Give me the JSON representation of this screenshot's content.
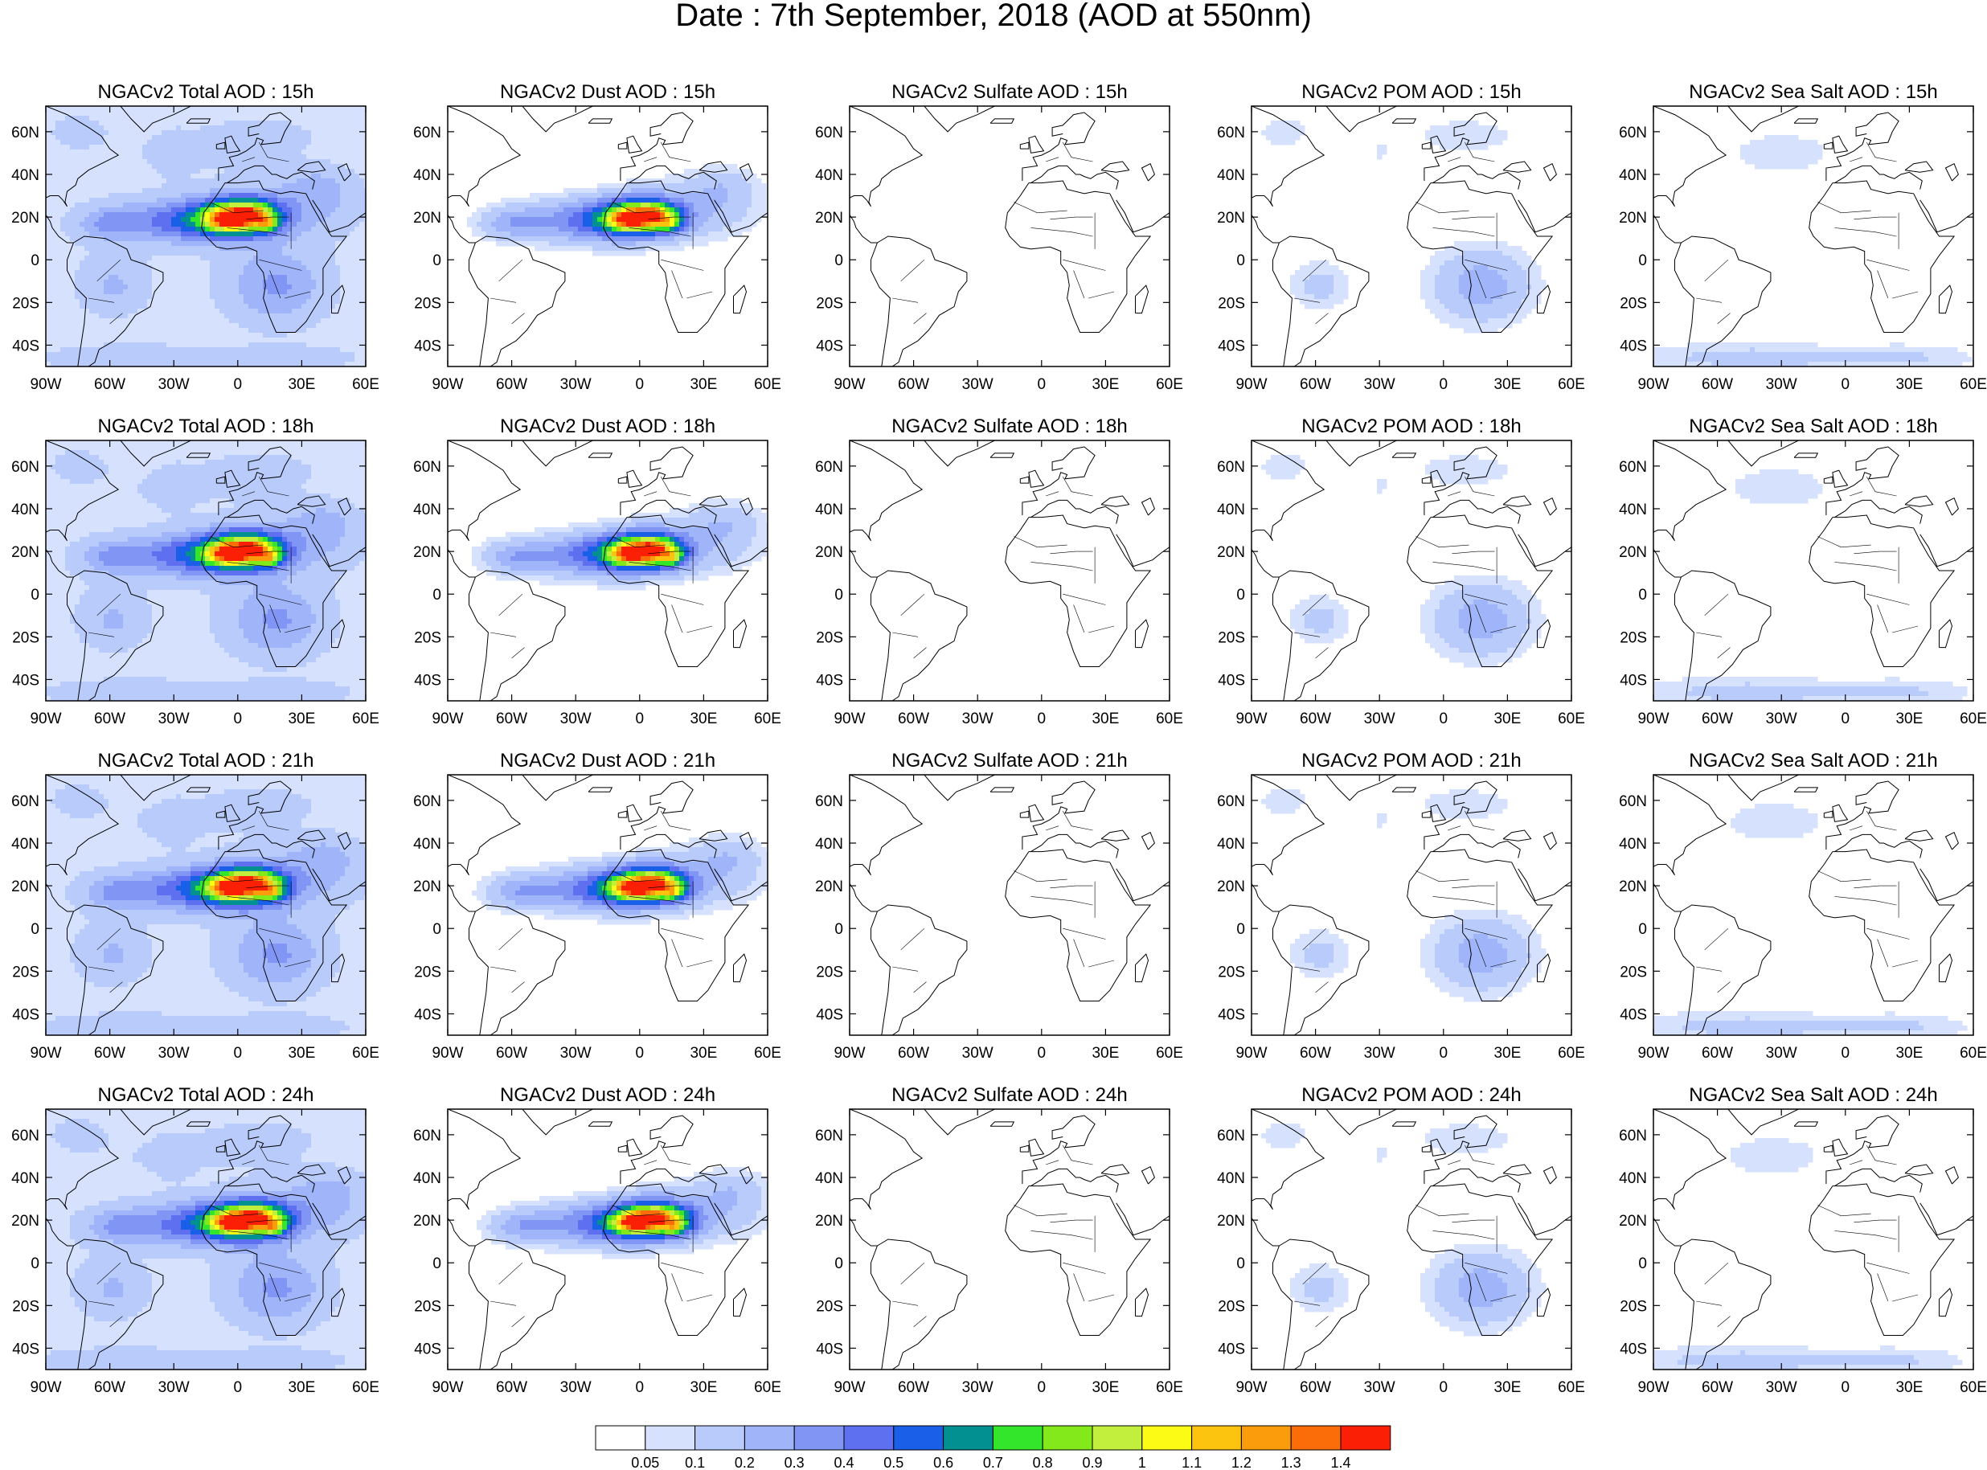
{
  "title": "Date : 7th September, 2018 (AOD at 550nm)",
  "rows": [
    [
      "NGACv2 Total AOD : 15h",
      "NGACv2 Dust AOD : 15h",
      "NGACv2 Sulfate AOD : 15h",
      "NGACv2 POM AOD : 15h",
      "NGACv2 Sea Salt AOD : 15h"
    ],
    [
      "NGACv2 Total AOD : 18h",
      "NGACv2 Dust AOD : 18h",
      "NGACv2 Sulfate AOD : 18h",
      "NGACv2 POM AOD : 18h",
      "NGACv2 Sea Salt AOD : 18h"
    ],
    [
      "NGACv2 Total AOD : 21h",
      "NGACv2 Dust AOD : 21h",
      "NGACv2 Sulfate AOD : 21h",
      "NGACv2 POM AOD : 21h",
      "NGACv2 Sea Salt AOD : 21h"
    ],
    [
      "NGACv2 Total AOD : 24h",
      "NGACv2 Dust AOD : 24h",
      "NGACv2 Sulfate AOD : 24h",
      "NGACv2 POM AOD : 24h",
      "NGACv2 Sea Salt  AOD : 24h"
    ]
  ],
  "lon_ticks": [
    "90W",
    "60W",
    "30W",
    "0",
    "30E",
    "60E"
  ],
  "lat_ticks": [
    "60N",
    "40N",
    "20N",
    "0",
    "20S",
    "40S"
  ],
  "lon_range": [
    -90,
    60
  ],
  "lat_range": [
    -50,
    72
  ],
  "colorbar": {
    "labels": [
      "0.05",
      "0.1",
      "0.2",
      "0.3",
      "0.4",
      "0.5",
      "0.6",
      "0.7",
      "0.8",
      "0.9",
      "1",
      "1.1",
      "1.2",
      "1.3",
      "1.4"
    ],
    "colors": [
      "#ffffff",
      "#d5e1fd",
      "#b9cbfb",
      "#9fb4f9",
      "#8095f4",
      "#5e6ff0",
      "#1a5fe8",
      "#039090",
      "#33e52b",
      "#84e91a",
      "#c2ef3e",
      "#fbfb16",
      "#fcc30f",
      "#fb9c0c",
      "#fb6d08",
      "#fb1f05"
    ]
  }
}
